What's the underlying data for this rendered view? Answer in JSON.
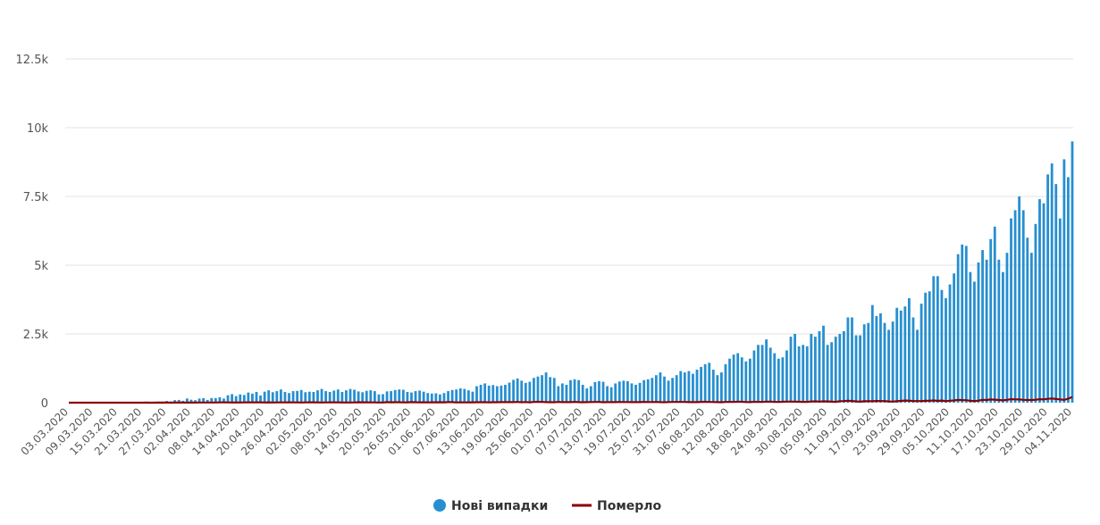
{
  "chart_data": {
    "type": "bar+line",
    "title": "",
    "xlabel": "",
    "ylabel": "",
    "x_first": "03.03.2020",
    "x_last": "04.11.2020",
    "x_interval": "daily",
    "ylim": [
      0,
      12500
    ],
    "y_ticks": [
      0,
      2500,
      5000,
      7500,
      10000,
      12500
    ],
    "y_tick_labels": [
      "0",
      "2.5k",
      "5k",
      "7.5k",
      "10k",
      "12.5k"
    ],
    "x_tick_labels": [
      "03.03.2020",
      "09.03.2020",
      "15.03.2020",
      "21.03.2020",
      "27.03.2020",
      "02.04.2020",
      "08.04.2020",
      "14.04.2020",
      "20.04.2020",
      "26.04.2020",
      "02.05.2020",
      "08.05.2020",
      "14.05.2020",
      "20.05.2020",
      "26.05.2020",
      "01.06.2020",
      "07.06.2020",
      "13.06.2020",
      "19.06.2020",
      "25.06.2020",
      "01.07.2020",
      "07.07.2020",
      "13.07.2020",
      "19.07.2020",
      "25.07.2020",
      "31.07.2020",
      "06.08.2020",
      "12.08.2020",
      "18.08.2020",
      "24.08.2020",
      "30.08.2020",
      "05.09.2020",
      "11.09.2020",
      "17.09.2020",
      "23.09.2020",
      "29.09.2020",
      "05.10.2020",
      "11.10.2020",
      "17.10.2020",
      "23.10.2020",
      "29.10.2020",
      "04.11.2020"
    ],
    "grid": true,
    "legend_placement": "bottom",
    "series": [
      {
        "name": "Нові випадки",
        "kind": "bar",
        "color": "#268fd0",
        "values": [
          1,
          0,
          0,
          0,
          0,
          0,
          0,
          0,
          0,
          0,
          2,
          0,
          1,
          3,
          7,
          2,
          10,
          16,
          5,
          26,
          18,
          37,
          40,
          44,
          62,
          45,
          93,
          100,
          69,
          153,
          108,
          90,
          150,
          165,
          100,
          170,
          167,
          200,
          150,
          270,
          310,
          240,
          300,
          280,
          370,
          330,
          390,
          260,
          400,
          450,
          380,
          420,
          480,
          390,
          350,
          420,
          430,
          460,
          380,
          400,
          390,
          450,
          500,
          420,
          390,
          440,
          480,
          390,
          450,
          500,
          470,
          410,
          380,
          430,
          450,
          420,
          300,
          310,
          410,
          420,
          460,
          480,
          470,
          390,
          370,
          420,
          440,
          400,
          350,
          330,
          340,
          300,
          350,
          420,
          460,
          480,
          520,
          500,
          450,
          400,
          600,
          650,
          700,
          620,
          640,
          600,
          620,
          650,
          730,
          830,
          880,
          800,
          720,
          760,
          900,
          950,
          1000,
          1100,
          930,
          900,
          600,
          700,
          650,
          820,
          850,
          820,
          650,
          520,
          600,
          750,
          780,
          760,
          600,
          560,
          700,
          770,
          800,
          780,
          700,
          650,
          720,
          820,
          850,
          900,
          1000,
          1100,
          950,
          800,
          900,
          1000,
          1150,
          1100,
          1150,
          1050,
          1200,
          1300,
          1400,
          1450,
          1200,
          1000,
          1100,
          1400,
          1600,
          1750,
          1800,
          1650,
          1500,
          1600,
          1900,
          2100,
          2100,
          2300,
          2000,
          1800,
          1600,
          1650,
          1900,
          2400,
          2500,
          2050,
          2100,
          2050,
          2500,
          2400,
          2600,
          2800,
          2100,
          2200,
          2400,
          2500,
          2600,
          3100,
          3100,
          2450,
          2450,
          2850,
          2900,
          3550,
          3150,
          3250,
          2900,
          2650,
          2950,
          3450,
          3350,
          3500,
          3800,
          3100,
          2650,
          3600,
          4000,
          4050,
          4600,
          4600,
          4100,
          3800,
          4300,
          4700,
          5400,
          5750,
          5700,
          4750,
          4400,
          5100,
          5550,
          5200,
          5950,
          6400,
          5200,
          4750,
          5450,
          6700,
          7000,
          7500,
          7000,
          6000,
          5450,
          6500,
          7400,
          7250,
          8300,
          8700,
          7950,
          6700,
          8850,
          8200,
          9500
        ]
      },
      {
        "name": "Померло",
        "kind": "line",
        "color": "#8b0000",
        "values": [
          0,
          0,
          0,
          0,
          0,
          0,
          0,
          0,
          0,
          0,
          0,
          0,
          1,
          0,
          1,
          0,
          0,
          1,
          0,
          2,
          1,
          1,
          2,
          1,
          5,
          1,
          5,
          2,
          3,
          5,
          4,
          2,
          7,
          5,
          6,
          7,
          5,
          10,
          12,
          11,
          8,
          9,
          7,
          9,
          12,
          9,
          12,
          13,
          7,
          13,
          7,
          9,
          10,
          10,
          13,
          10,
          11,
          7,
          10,
          13,
          14,
          10,
          7,
          11,
          9,
          12,
          11,
          8,
          9,
          7,
          10,
          15,
          12,
          14,
          9,
          9,
          8,
          7,
          20,
          14,
          15,
          16,
          10,
          12,
          18,
          16,
          10,
          17,
          11,
          12,
          13,
          15,
          12,
          18,
          19,
          11,
          13,
          10,
          14,
          14,
          15,
          15,
          18,
          11,
          16,
          17,
          20,
          22,
          18,
          18,
          25,
          17,
          22,
          14,
          25,
          31,
          25,
          20,
          16,
          17,
          26,
          19,
          21,
          21,
          28,
          19,
          17,
          19,
          22,
          25,
          26,
          16,
          18,
          24,
          20,
          26,
          22,
          24,
          21,
          20,
          21,
          30,
          23,
          23,
          26,
          20,
          15,
          23,
          27,
          25,
          26,
          26,
          21,
          19,
          20,
          29,
          32,
          27,
          24,
          21,
          15,
          27,
          29,
          28,
          32,
          33,
          24,
          20,
          33,
          30,
          27,
          39,
          35,
          30,
          27,
          33,
          38,
          39,
          36,
          33,
          29,
          30,
          41,
          49,
          40,
          48,
          44,
          36,
          30,
          54,
          57,
          68,
          62,
          47,
          37,
          53,
          52,
          56,
          62,
          60,
          57,
          46,
          40,
          53,
          64,
          78,
          73,
          61,
          59,
          59,
          69,
          73,
          80,
          64,
          79,
          56,
          73,
          82,
          101,
          94,
          92,
          69,
          58,
          75,
          103,
          96,
          116,
          109,
          97,
          84,
          105,
          126,
          120,
          118,
          104,
          98,
          98,
          107,
          128,
          121,
          141,
          152,
          132,
          120,
          102,
          145,
          208
        ]
      }
    ]
  },
  "legend": {
    "items": [
      {
        "label": "Нові випадки",
        "icon": "circle-marker-icon",
        "color": "#268fd0"
      },
      {
        "label": "Померло",
        "icon": "line-marker-icon",
        "color": "#8b0000"
      }
    ]
  }
}
